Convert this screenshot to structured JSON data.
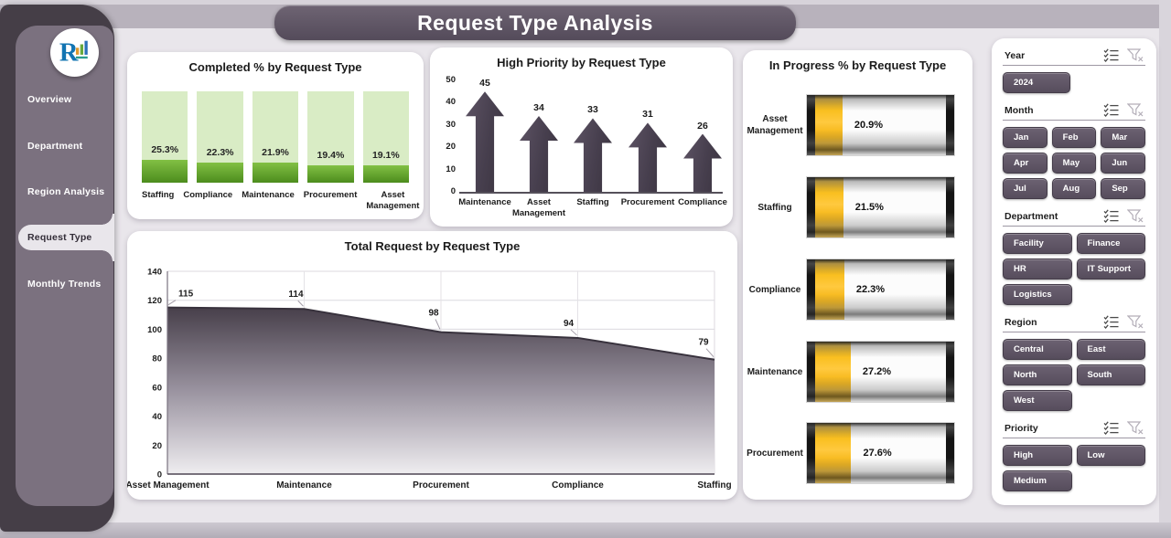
{
  "title": "Request Type Analysis",
  "sidebar": {
    "logo_icon": "company-logo",
    "items": [
      {
        "label": "Overview",
        "active": false
      },
      {
        "label": "Department",
        "active": false
      },
      {
        "label": "Region Analysis",
        "active": false
      },
      {
        "label": "Request Type",
        "active": true
      },
      {
        "label": "Monthly Trends",
        "active": false
      }
    ]
  },
  "slicers": {
    "header_icons": [
      "multi-select-icon",
      "clear-filter-icon"
    ],
    "button_color": "#5e5463",
    "panels": [
      {
        "label": "Year",
        "cols": 1,
        "options": [
          "2024"
        ]
      },
      {
        "label": "Month",
        "cols": 3,
        "options": [
          "Jan",
          "Feb",
          "Mar",
          "Apr",
          "May",
          "Jun",
          "Jul",
          "Aug",
          "Sep"
        ]
      },
      {
        "label": "Department",
        "cols": 2,
        "options": [
          "Facility",
          "Finance",
          "HR",
          "IT Support",
          "Logistics"
        ]
      },
      {
        "label": "Region",
        "cols": 2,
        "options": [
          "Central",
          "East",
          "North",
          "South",
          "West"
        ]
      },
      {
        "label": "Priority",
        "cols": 2,
        "options": [
          "High",
          "Low",
          "Medium"
        ]
      }
    ]
  },
  "chart_data": [
    {
      "type": "bar",
      "variant": "progress-column",
      "title": "Completed % by Request Type",
      "categories": [
        "Staffing",
        "Compliance",
        "Maintenance",
        "Procurement",
        "Asset Management"
      ],
      "values": [
        25.3,
        22.3,
        21.9,
        19.4,
        19.1
      ],
      "value_suffix": "%",
      "ylim": [
        0,
        100
      ],
      "track_color": "#d9ecc5",
      "fill_color": "#5f9e27"
    },
    {
      "type": "bar",
      "variant": "arrow",
      "title": "High Priority by Request Type",
      "categories": [
        "Maintenance",
        "Asset Management",
        "Staffing",
        "Procurement",
        "Compliance"
      ],
      "values": [
        45,
        34,
        33,
        31,
        26
      ],
      "ylim": [
        0,
        50
      ],
      "yticks": [
        0,
        10,
        20,
        30,
        40,
        50
      ],
      "arrow_color": "#453d4a"
    },
    {
      "type": "bar",
      "variant": "battery",
      "orientation": "horizontal",
      "title": "In Progress % by Request Type",
      "categories": [
        "Asset Management",
        "Staffing",
        "Compliance",
        "Maintenance",
        "Procurement"
      ],
      "values": [
        20.9,
        21.5,
        22.3,
        27.2,
        27.6
      ],
      "value_suffix": "%",
      "xlim": [
        0,
        100
      ],
      "fill_color": "#f2b50d"
    },
    {
      "type": "area",
      "title": "Total Request by Request Type",
      "categories": [
        "Asset Management",
        "Maintenance",
        "Procurement",
        "Compliance",
        "Staffing"
      ],
      "values": [
        115,
        114,
        98,
        94,
        79
      ],
      "ylim": [
        0,
        140
      ],
      "yticks": [
        0,
        20,
        40,
        60,
        80,
        100,
        120,
        140
      ],
      "grid": true,
      "fill_top": "#473f4a",
      "fill_bottom": "#efedf0",
      "line_color": "#38323d"
    }
  ]
}
